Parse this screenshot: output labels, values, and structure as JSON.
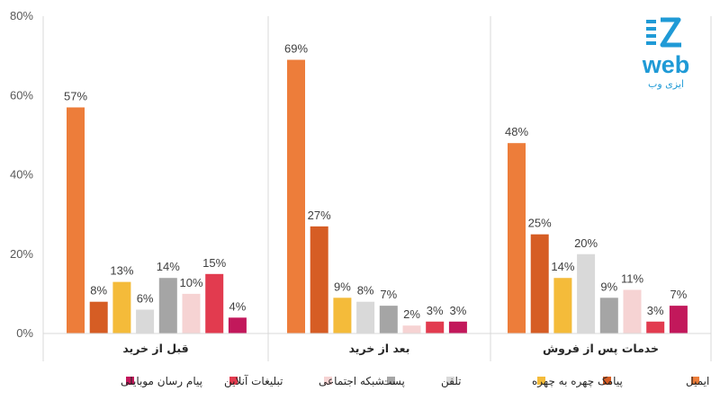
{
  "logo": {
    "word": "web",
    "tagline": "ایزی وب",
    "color": "#1f9ad6"
  },
  "chart_data": {
    "type": "bar",
    "title": "",
    "xlabel": "",
    "ylabel": "",
    "ylim": [
      0,
      80
    ],
    "yticks": [
      "0%",
      "20%",
      "40%",
      "60%",
      "80%"
    ],
    "grid": false,
    "legend_position": "bottom",
    "categories": [
      "قبل از خرید",
      "بعد از خرید",
      "خدمات پس از فروش"
    ],
    "series": [
      {
        "name": "ایمیل",
        "color": "#ed7d3a",
        "values": [
          57,
          69,
          48
        ],
        "labels": [
          "57%",
          "69%",
          "48%"
        ]
      },
      {
        "name": "پیامک",
        "color": "#d65d24",
        "values": [
          8,
          27,
          25
        ],
        "labels": [
          "8%",
          "27%",
          "25%"
        ]
      },
      {
        "name": "چهره به چهره",
        "color": "#f4bb3a",
        "values": [
          13,
          9,
          14
        ],
        "labels": [
          "13%",
          "9%",
          "14%"
        ]
      },
      {
        "name": "تلفن",
        "color": "#d9d9d9",
        "values": [
          6,
          8,
          20
        ],
        "labels": [
          "6%",
          "8%",
          "20%"
        ]
      },
      {
        "name": "پست",
        "color": "#a5a5a5",
        "values": [
          14,
          7,
          9
        ],
        "labels": [
          "14%",
          "7%",
          "9%"
        ]
      },
      {
        "name": "شبکه اجتماعی",
        "color": "#f6d3d3",
        "values": [
          10,
          2,
          11
        ],
        "labels": [
          "10%",
          "2%",
          "11%"
        ]
      },
      {
        "name": "تبلیغات آنلاین",
        "color": "#e23b4f",
        "values": [
          15,
          3,
          3
        ],
        "labels": [
          "15%",
          "3%",
          "3%"
        ]
      },
      {
        "name": "پیام رسان موبایلی",
        "color": "#c2185b",
        "values": [
          4,
          3,
          7
        ],
        "labels": [
          "4%",
          "3%",
          "7%"
        ]
      }
    ]
  }
}
